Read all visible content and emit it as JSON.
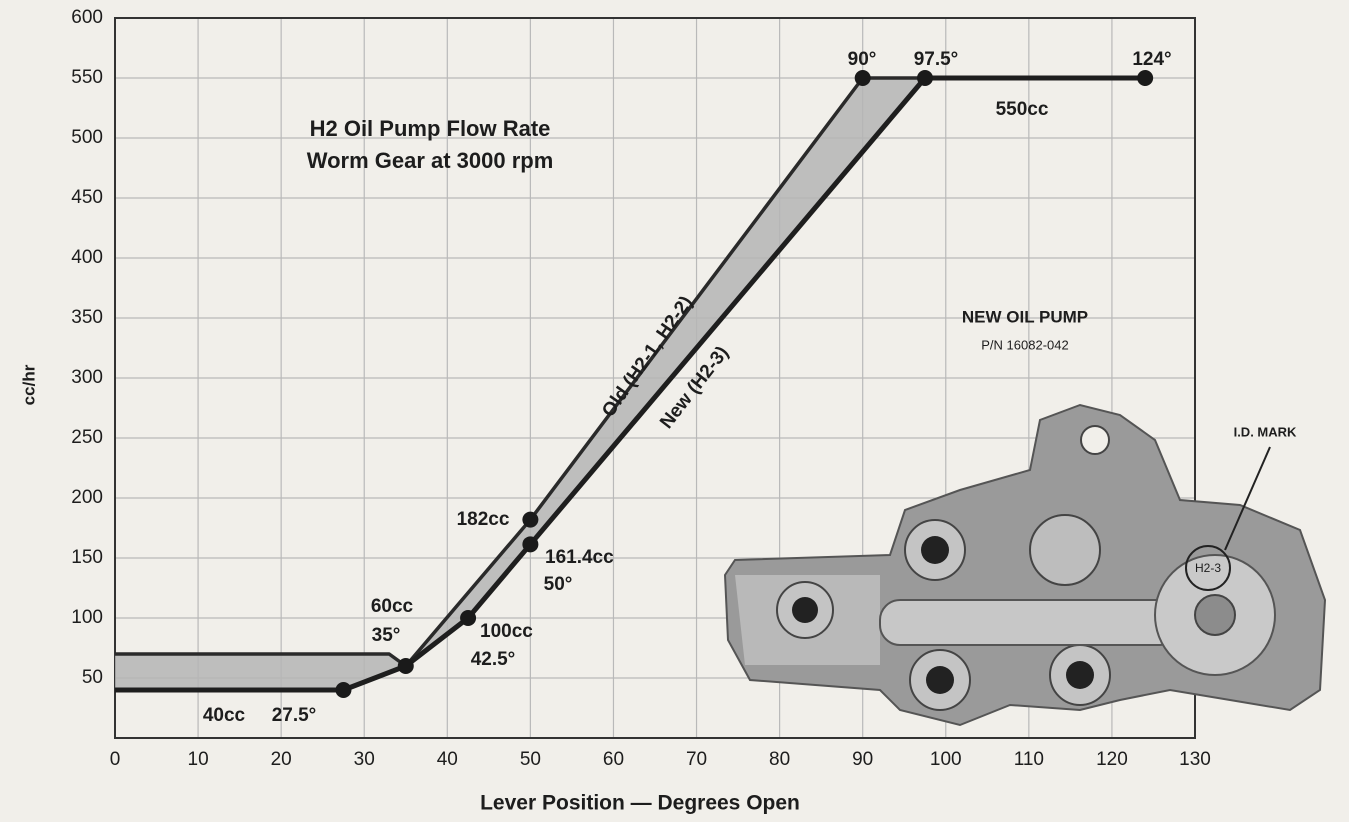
{
  "chart_data": {
    "type": "line",
    "title": "H2 Oil Pump Flow Rate",
    "subtitle": "Worm Gear at 3000 rpm",
    "x_label": "Lever Position — Degrees Open",
    "y_label": "cc/hr",
    "xlim": [
      0,
      130
    ],
    "ylim": [
      0,
      600
    ],
    "xticks": [
      0,
      10,
      20,
      30,
      40,
      50,
      60,
      70,
      80,
      90,
      100,
      110,
      120,
      130
    ],
    "yticks": [
      50,
      100,
      150,
      200,
      250,
      300,
      350,
      400,
      450,
      500,
      550,
      600
    ],
    "grid": true,
    "series": [
      {
        "name": "Old (H2-1, H2-2)",
        "color": "#2a2a2a",
        "x": [
          0,
          33,
          35,
          50,
          90,
          97.5
        ],
        "values": [
          70,
          70,
          60,
          182,
          550,
          550
        ],
        "markers": [
          false,
          false,
          false,
          true,
          true,
          false
        ]
      },
      {
        "name": "New (H2-3)",
        "color": "#1e1e1e",
        "x": [
          0,
          27.5,
          35,
          42.5,
          50,
          97.5,
          124
        ],
        "values": [
          40,
          40,
          60,
          100,
          161.4,
          550,
          550
        ],
        "markers": [
          false,
          true,
          true,
          true,
          true,
          true,
          true
        ]
      }
    ],
    "band_color": "#b5b5b5",
    "annotations": [
      "90°",
      "97.5°",
      "124°",
      "550cc",
      "182cc",
      "161.4cc",
      "50°",
      "60cc",
      "35°",
      "100cc",
      "42.5°",
      "40cc",
      "27.5°"
    ],
    "inset": {
      "title": "NEW OIL PUMP",
      "part_number": "P/N 16082-042",
      "callout": "I.D. MARK",
      "id_mark": "H2-3"
    }
  }
}
